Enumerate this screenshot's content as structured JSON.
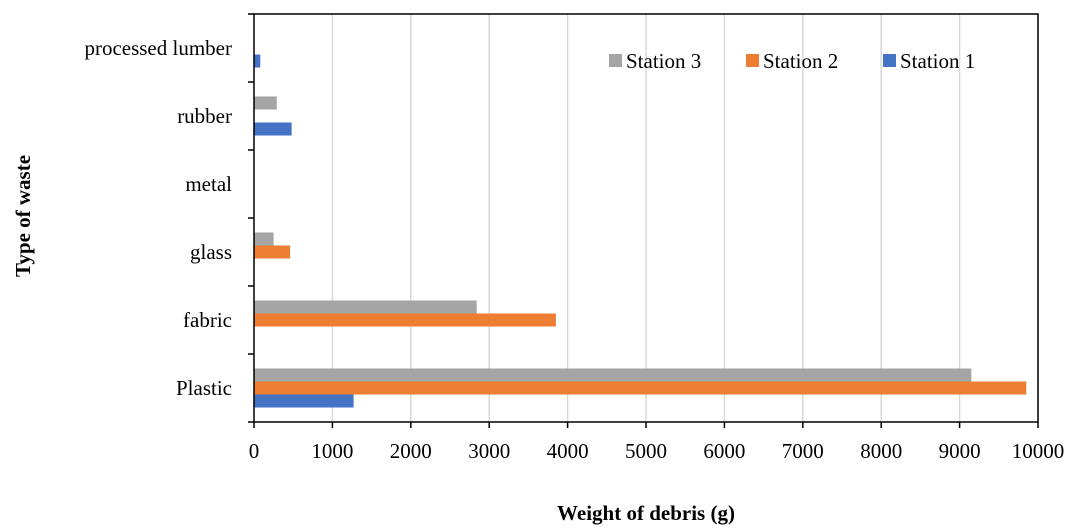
{
  "chart_data": {
    "type": "bar",
    "orientation": "horizontal",
    "categories": [
      "Plastic",
      "fabric",
      "glass",
      "metal",
      "rubber",
      "processed lumber"
    ],
    "series": [
      {
        "name": "Station 1",
        "color": "#4472C4",
        "values": [
          1270,
          0,
          0,
          0,
          480,
          80
        ]
      },
      {
        "name": "Station 2",
        "color": "#ED7D31",
        "values": [
          9850,
          3850,
          460,
          0,
          0,
          0
        ]
      },
      {
        "name": "Station 3",
        "color": "#A5A5A5",
        "values": [
          9150,
          2840,
          250,
          0,
          290,
          0
        ]
      }
    ],
    "legend_order": [
      "Station 3",
      "Station 2",
      "Station 1"
    ],
    "legend_position": "top-right",
    "xlabel": "Weight of debris (g)",
    "ylabel": "Type of waste",
    "xlim": [
      0,
      10000
    ],
    "xticks": [
      "0",
      "1000",
      "2000",
      "3000",
      "4000",
      "5000",
      "6000",
      "7000",
      "8000",
      "9000",
      "10000"
    ],
    "grid": "vertical"
  }
}
